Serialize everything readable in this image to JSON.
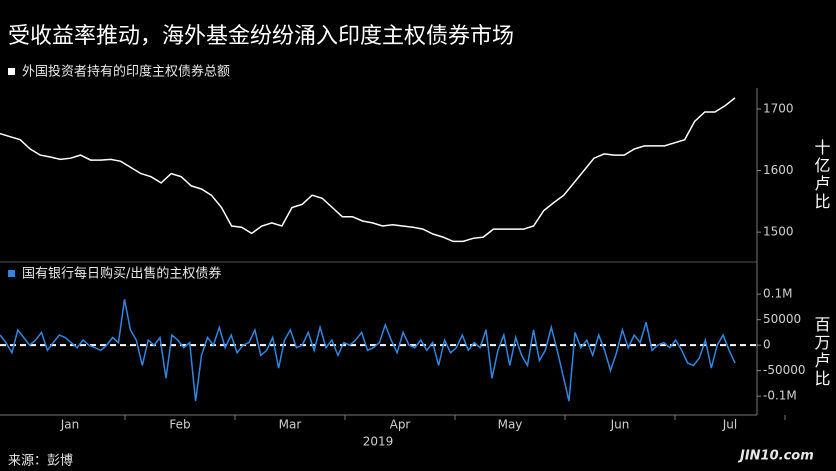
{
  "title": "受收益率推动，海外基金纷纷涌入印度主权债券市场",
  "source": "来源：彭博",
  "watermark": "JIN10.com",
  "chart_data": [
    {
      "type": "line",
      "ylabel": "十亿卢比",
      "ylim": [
        1458,
        1734
      ],
      "yticks": [
        1500,
        1600,
        1700
      ],
      "series": [
        {
          "name": "外国投资者持有的印度主权债券总额",
          "color": "#ffffff",
          "values": [
            1660,
            1655,
            1650,
            1635,
            1625,
            1622,
            1618,
            1620,
            1625,
            1617,
            1617,
            1618,
            1615,
            1605,
            1595,
            1590,
            1580,
            1595,
            1590,
            1575,
            1570,
            1560,
            1540,
            1510,
            1508,
            1498,
            1510,
            1515,
            1510,
            1540,
            1545,
            1560,
            1555,
            1540,
            1525,
            1525,
            1518,
            1515,
            1510,
            1512,
            1510,
            1508,
            1505,
            1497,
            1492,
            1485,
            1485,
            1490,
            1492,
            1505,
            1505,
            1505,
            1505,
            1510,
            1535,
            1548,
            1560,
            1580,
            1600,
            1620,
            1627,
            1625,
            1625,
            1635,
            1640,
            1640,
            1640,
            1645,
            1650,
            1680,
            1695,
            1695,
            1705,
            1718
          ]
        }
      ]
    },
    {
      "type": "line",
      "ylabel": "百万卢比",
      "ylim": [
        -137000,
        118000
      ],
      "yticks": [
        {
          "value": 100000,
          "label": "0.1M"
        },
        50000,
        0,
        -50000,
        {
          "value": -100000,
          "label": "-0.1M"
        }
      ],
      "x_tick_labels": [
        "Jan",
        "Feb",
        "Mar",
        "Apr",
        "May",
        "Jun",
        "Jul"
      ],
      "x_year": "2019",
      "series": [
        {
          "name": "国有银行每日购买/出售的主权债券",
          "color": "#2f86e0",
          "values": [
            20000,
            5000,
            -15000,
            30000,
            15000,
            0,
            10000,
            25000,
            -10000,
            5000,
            20000,
            15000,
            5000,
            -5000,
            10000,
            0,
            -5000,
            -10000,
            0,
            15000,
            5000,
            90000,
            30000,
            10000,
            -40000,
            10000,
            0,
            15000,
            -65000,
            20000,
            10000,
            -5000,
            5000,
            -110000,
            -20000,
            15000,
            0,
            35000,
            -5000,
            20000,
            -15000,
            0,
            5000,
            30000,
            -20000,
            -10000,
            15000,
            -45000,
            10000,
            30000,
            -5000,
            0,
            25000,
            -10000,
            35000,
            -5000,
            10000,
            -20000,
            5000,
            0,
            10000,
            25000,
            -10000,
            -5000,
            5000,
            40000,
            10000,
            -15000,
            25000,
            0,
            -5000,
            10000,
            -10000,
            5000,
            -40000,
            10000,
            -15000,
            -5000,
            20000,
            -10000,
            5000,
            -5000,
            30000,
            -65000,
            -10000,
            20000,
            -40000,
            15000,
            -20000,
            -40000,
            30000,
            -30000,
            -10000,
            35000,
            -10000,
            -60000,
            -110000,
            25000,
            -5000,
            10000,
            -20000,
            20000,
            -10000,
            -50000,
            -15000,
            30000,
            -5000,
            20000,
            5000,
            45000,
            -10000,
            0,
            5000,
            -5000,
            10000,
            -10000,
            -35000,
            -40000,
            -25000,
            10000,
            -45000,
            0,
            20000,
            -10000,
            -35000
          ]
        }
      ]
    }
  ]
}
